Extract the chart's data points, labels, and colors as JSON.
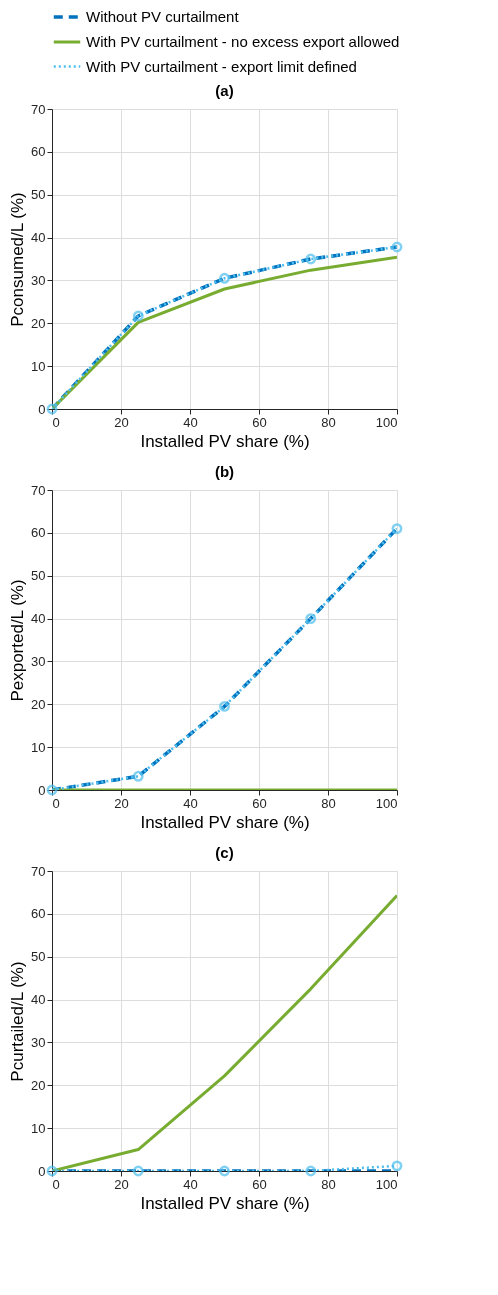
{
  "chart_data": [
    {
      "type": "line",
      "title": "(a)",
      "xlabel": "Installed PV share (%)",
      "ylabel": "Pconsumed/L (%)",
      "x": [
        0,
        25,
        50,
        75,
        100
      ],
      "xlim": [
        0,
        100
      ],
      "xticks": [
        0,
        20,
        40,
        60,
        80,
        100
      ],
      "ylim": [
        0,
        70
      ],
      "yticks": [
        0,
        10,
        20,
        30,
        40,
        50,
        60,
        70
      ],
      "grid": true,
      "legend": "top",
      "series": [
        {
          "name": "Without PV curtailment",
          "color": "#0072bd",
          "line_style": "dashed",
          "marker": "none",
          "values": [
            0,
            21.7,
            30.5,
            35,
            37.8
          ]
        },
        {
          "name": "With PV curtailment - no excess export allowed",
          "color": "#77ac30",
          "line_style": "solid",
          "marker": "none",
          "values": [
            0,
            20.2,
            28,
            32.4,
            35.4
          ]
        },
        {
          "name": "With PV curtailment - export limit defined",
          "color": "#4dbeee",
          "line_style": "dotted",
          "marker": "circle",
          "values": [
            0,
            21.7,
            30.5,
            35,
            37.8
          ]
        }
      ]
    },
    {
      "type": "line",
      "title": "(b)",
      "xlabel": "Installed PV share (%)",
      "ylabel": "Pexported/L (%)",
      "x": [
        0,
        25,
        50,
        75,
        100
      ],
      "xlim": [
        0,
        100
      ],
      "xticks": [
        0,
        20,
        40,
        60,
        80,
        100
      ],
      "ylim": [
        0,
        70
      ],
      "yticks": [
        0,
        10,
        20,
        30,
        40,
        50,
        60,
        70
      ],
      "grid": true,
      "series": [
        {
          "color": "#0072bd",
          "line_style": "dashed",
          "marker": "none",
          "values": [
            0,
            3.2,
            19.5,
            40,
            61
          ]
        },
        {
          "color": "#77ac30",
          "line_style": "solid",
          "marker": "none",
          "values": [
            0,
            0,
            0,
            0,
            0
          ]
        },
        {
          "color": "#4dbeee",
          "line_style": "dotted",
          "marker": "circle",
          "values": [
            0,
            3.2,
            19.5,
            40,
            61
          ]
        }
      ]
    },
    {
      "type": "line",
      "title": "(c)",
      "xlabel": "Installed PV share (%)",
      "ylabel": "Pcurtailed/L (%)",
      "x": [
        0,
        25,
        50,
        75,
        100
      ],
      "xlim": [
        0,
        100
      ],
      "xticks": [
        0,
        20,
        40,
        60,
        80,
        100
      ],
      "ylim": [
        0,
        70
      ],
      "yticks": [
        0,
        10,
        20,
        30,
        40,
        50,
        60,
        70
      ],
      "grid": true,
      "series": [
        {
          "color": "#0072bd",
          "line_style": "dashed",
          "marker": "none",
          "values": [
            0,
            0,
            0,
            0,
            0
          ]
        },
        {
          "color": "#77ac30",
          "line_style": "solid",
          "marker": "none",
          "values": [
            0,
            5,
            22.2,
            42.5,
            64.3
          ]
        },
        {
          "color": "#4dbeee",
          "line_style": "dotted",
          "marker": "circle",
          "values": [
            0,
            0,
            0,
            0,
            1.2
          ]
        }
      ]
    }
  ]
}
